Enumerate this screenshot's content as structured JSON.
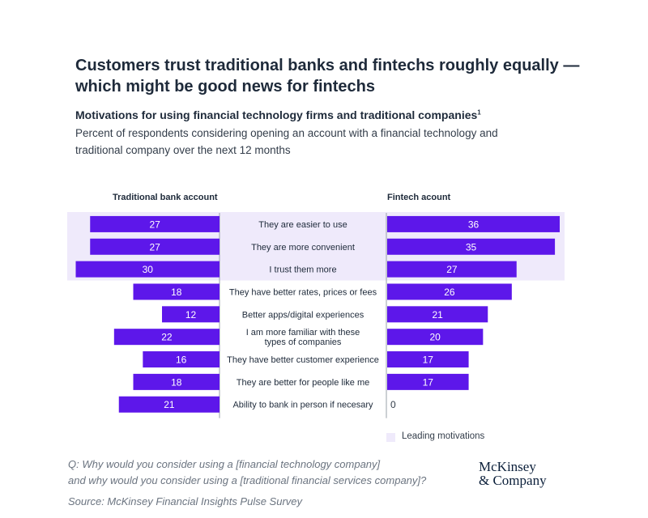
{
  "header": {
    "title": "Customers trust traditional banks and fintechs roughly equally — which might be good news for fintechs",
    "subtitle": "Motivations for using financial technology firms and traditional companies",
    "subtitle_footnote": "1",
    "description": "Percent of respondents considering opening an account with a financial technology and traditional company over the next 12 months"
  },
  "colors": {
    "bar": "#5d17ea",
    "highlight": "#efeafb",
    "axis": "#9aa0a8",
    "label_on_bar": "#ffffff",
    "label_off_bar": "#333d4a"
  },
  "chart_data": {
    "type": "bar",
    "orientation": "horizontal-butterfly",
    "categories": [
      "They are easier to use",
      "They are more convenient",
      "I trust them more",
      "They have better rates, prices or fees",
      "Better apps/digital experiences",
      "I am more familiar with these types of companies",
      "They have better customer experience",
      "They are better for people like me",
      "Ability to bank in person if necesary"
    ],
    "category_lines": [
      [
        "They are easier to use"
      ],
      [
        "They are more convenient"
      ],
      [
        "I trust them more"
      ],
      [
        "They have better rates, prices or fees"
      ],
      [
        "Better apps/digital experiences"
      ],
      [
        "I am more familiar with these",
        "types of companies"
      ],
      [
        "They have better customer experience"
      ],
      [
        "They are better for people like me"
      ],
      [
        "Ability to bank in person if necesary"
      ]
    ],
    "series": [
      {
        "name": "Traditional bank account",
        "values": [
          27,
          27,
          30,
          18,
          12,
          22,
          16,
          18,
          21
        ]
      },
      {
        "name": "Fintech acount",
        "values": [
          36,
          35,
          27,
          26,
          21,
          20,
          17,
          17,
          0
        ]
      }
    ],
    "highlighted_categories": [
      0,
      1,
      2
    ],
    "legend": {
      "label": "Leading motivations",
      "position": "bottom-right"
    },
    "xlim": [
      0,
      36
    ]
  },
  "footer": {
    "question_line1": "Q: Why would you consider using a [financial technology company]",
    "question_line2": "and why would you consider using a [traditional financial services company]?",
    "source": "Source: McKinsey Financial Insights Pulse Survey",
    "logo_line1": "McKinsey",
    "logo_line2": "& Company"
  }
}
